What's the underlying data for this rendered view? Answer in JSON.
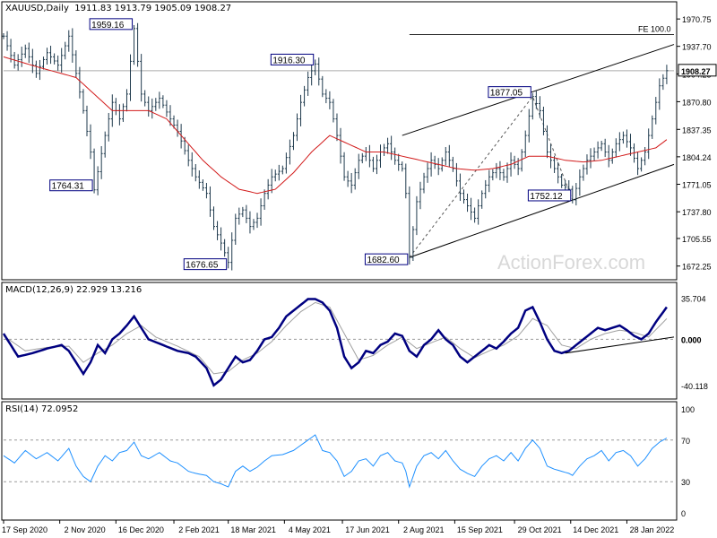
{
  "header": {
    "symbol": "XAUUSD,Daily",
    "ohlc": "1911.83 1913.79 1905.09 1908.27",
    "macd": "MACD(12,26,9) 22.929 13.216",
    "rsi": "RSI(14) 72.0952"
  },
  "watermark": "ActionForex.com",
  "colors": {
    "price": "#1f3a4d",
    "ma": "#d21a1a",
    "macd": "#000080",
    "signal": "#a0a0a0",
    "rsi": "#1e90ff",
    "annotation_border": "#000080",
    "channel": "#000000"
  },
  "chart_data": [
    {
      "type": "ohlc",
      "panel": "price",
      "ylim": [
        1660,
        1985
      ],
      "y_ticks": [
        "1970.75",
        "1937.70",
        "1904.25",
        "1870.80",
        "1837.35",
        "1804.24",
        "1771.05",
        "1737.80",
        "1705.55",
        "1672.25"
      ],
      "current_price_label": "1908.27",
      "x_ticks": [
        "17 Sep 2020",
        "2 Nov 2020",
        "16 Dec 2020",
        "2 Feb 2021",
        "18 Mar 2021",
        "4 May 2021",
        "17 Jun 2021",
        "2 Aug 2021",
        "15 Sep 2021",
        "29 Oct 2021",
        "14 Dec 2021",
        "28 Jan 2022"
      ],
      "price_path": [
        [
          0,
          1950
        ],
        [
          3,
          1915
        ],
        [
          6,
          1935
        ],
        [
          9,
          1905
        ],
        [
          12,
          1930
        ],
        [
          15,
          1915
        ],
        [
          18,
          1950
        ],
        [
          20,
          1905
        ],
        [
          22,
          1860
        ],
        [
          24,
          1810
        ],
        [
          25,
          1764.31
        ],
        [
          28,
          1830
        ],
        [
          30,
          1870
        ],
        [
          32,
          1850
        ],
        [
          34,
          1880
        ],
        [
          36,
          1959.16
        ],
        [
          38,
          1880
        ],
        [
          40,
          1860
        ],
        [
          43,
          1875
        ],
        [
          46,
          1850
        ],
        [
          48,
          1835
        ],
        [
          51,
          1800
        ],
        [
          53,
          1780
        ],
        [
          56,
          1760
        ],
        [
          58,
          1720
        ],
        [
          60,
          1700
        ],
        [
          62,
          1676.65
        ],
        [
          64,
          1730
        ],
        [
          66,
          1740
        ],
        [
          68,
          1720
        ],
        [
          70,
          1730
        ],
        [
          72,
          1760
        ],
        [
          74,
          1780
        ],
        [
          77,
          1790
        ],
        [
          80,
          1830
        ],
        [
          82,
          1870
        ],
        [
          84,
          1900
        ],
        [
          86,
          1916.3
        ],
        [
          88,
          1880
        ],
        [
          90,
          1870
        ],
        [
          92,
          1830
        ],
        [
          94,
          1780
        ],
        [
          96,
          1770
        ],
        [
          98,
          1800
        ],
        [
          100,
          1810
        ],
        [
          102,
          1790
        ],
        [
          104,
          1810
        ],
        [
          106,
          1820
        ],
        [
          108,
          1800
        ],
        [
          110,
          1790
        ],
        [
          111,
          1760
        ],
        [
          112,
          1682.6
        ],
        [
          114,
          1750
        ],
        [
          116,
          1780
        ],
        [
          118,
          1800
        ],
        [
          120,
          1790
        ],
        [
          122,
          1810
        ],
        [
          124,
          1790
        ],
        [
          126,
          1760
        ],
        [
          128,
          1745
        ],
        [
          130,
          1730
        ],
        [
          132,
          1760
        ],
        [
          134,
          1780
        ],
        [
          136,
          1790
        ],
        [
          138,
          1780
        ],
        [
          140,
          1800
        ],
        [
          142,
          1790
        ],
        [
          144,
          1830
        ],
        [
          146,
          1877.05
        ],
        [
          148,
          1860
        ],
        [
          150,
          1810
        ],
        [
          152,
          1790
        ],
        [
          154,
          1770
        ],
        [
          156,
          1765
        ],
        [
          157,
          1752.12
        ],
        [
          159,
          1780
        ],
        [
          161,
          1800
        ],
        [
          163,
          1810
        ],
        [
          165,
          1820
        ],
        [
          167,
          1800
        ],
        [
          169,
          1820
        ],
        [
          171,
          1830
        ],
        [
          173,
          1815
        ],
        [
          175,
          1790
        ],
        [
          177,
          1810
        ],
        [
          179,
          1850
        ],
        [
          181,
          1890
        ],
        [
          183,
          1908.27
        ]
      ],
      "ma_path": [
        [
          0,
          1925
        ],
        [
          10,
          1912
        ],
        [
          20,
          1900
        ],
        [
          25,
          1880
        ],
        [
          30,
          1860
        ],
        [
          35,
          1860
        ],
        [
          40,
          1860
        ],
        [
          45,
          1850
        ],
        [
          50,
          1825
        ],
        [
          55,
          1800
        ],
        [
          60,
          1780
        ],
        [
          65,
          1765
        ],
        [
          70,
          1760
        ],
        [
          75,
          1765
        ],
        [
          80,
          1785
        ],
        [
          85,
          1810
        ],
        [
          90,
          1830
        ],
        [
          95,
          1820
        ],
        [
          100,
          1810
        ],
        [
          105,
          1810
        ],
        [
          110,
          1805
        ],
        [
          115,
          1800
        ],
        [
          120,
          1795
        ],
        [
          125,
          1790
        ],
        [
          130,
          1788
        ],
        [
          135,
          1790
        ],
        [
          140,
          1795
        ],
        [
          145,
          1805
        ],
        [
          150,
          1805
        ],
        [
          155,
          1800
        ],
        [
          160,
          1798
        ],
        [
          165,
          1800
        ],
        [
          170,
          1805
        ],
        [
          175,
          1810
        ],
        [
          180,
          1815
        ],
        [
          183,
          1825
        ]
      ],
      "annotations": [
        {
          "label": "1959.16",
          "x": 36,
          "y": 1959.16,
          "side": "left"
        },
        {
          "label": "1916.30",
          "x": 86,
          "y": 1916.3,
          "side": "left"
        },
        {
          "label": "1764.31",
          "x": 25,
          "y": 1764.31,
          "side": "left"
        },
        {
          "label": "1676.65",
          "x": 62,
          "y": 1676.65,
          "side": "left"
        },
        {
          "label": "1682.60",
          "x": 112,
          "y": 1682.6,
          "side": "left"
        },
        {
          "label": "1877.05",
          "x": 146,
          "y": 1877.05,
          "side": "left"
        },
        {
          "label": "1752.12",
          "x": 157,
          "y": 1752.12,
          "side": "left"
        }
      ],
      "fe_label": "FE 100.0",
      "fe_level": 1952
    },
    {
      "type": "line",
      "panel": "macd",
      "ylim": [
        -48,
        44
      ],
      "y_ticks": [
        "35.704",
        "0.00",
        "-40.118"
      ],
      "zero_label": "0.000",
      "macd_path": [
        [
          0,
          5
        ],
        [
          2,
          -5
        ],
        [
          4,
          -15
        ],
        [
          8,
          -12
        ],
        [
          12,
          -8
        ],
        [
          16,
          -5
        ],
        [
          18,
          -10
        ],
        [
          20,
          -20
        ],
        [
          22,
          -30
        ],
        [
          24,
          -20
        ],
        [
          26,
          -5
        ],
        [
          28,
          -12
        ],
        [
          30,
          0
        ],
        [
          32,
          5
        ],
        [
          34,
          12
        ],
        [
          36,
          20
        ],
        [
          38,
          10
        ],
        [
          40,
          0
        ],
        [
          44,
          -5
        ],
        [
          48,
          -10
        ],
        [
          51,
          -12
        ],
        [
          53,
          -15
        ],
        [
          56,
          -25
        ],
        [
          58,
          -40
        ],
        [
          60,
          -35
        ],
        [
          62,
          -25
        ],
        [
          64,
          -15
        ],
        [
          66,
          -20
        ],
        [
          68,
          -18
        ],
        [
          70,
          -10
        ],
        [
          72,
          0
        ],
        [
          74,
          2
        ],
        [
          76,
          10
        ],
        [
          78,
          20
        ],
        [
          80,
          25
        ],
        [
          82,
          30
        ],
        [
          84,
          35
        ],
        [
          86,
          35
        ],
        [
          88,
          32
        ],
        [
          90,
          25
        ],
        [
          92,
          10
        ],
        [
          94,
          -15
        ],
        [
          96,
          -25
        ],
        [
          98,
          -20
        ],
        [
          100,
          -10
        ],
        [
          102,
          -12
        ],
        [
          104,
          -5
        ],
        [
          106,
          -2
        ],
        [
          108,
          5
        ],
        [
          110,
          3
        ],
        [
          112,
          -10
        ],
        [
          114,
          -15
        ],
        [
          116,
          -5
        ],
        [
          118,
          0
        ],
        [
          120,
          8
        ],
        [
          122,
          0
        ],
        [
          124,
          -5
        ],
        [
          126,
          -15
        ],
        [
          128,
          -20
        ],
        [
          130,
          -15
        ],
        [
          132,
          -10
        ],
        [
          134,
          -5
        ],
        [
          136,
          -8
        ],
        [
          138,
          -2
        ],
        [
          140,
          5
        ],
        [
          142,
          10
        ],
        [
          144,
          25
        ],
        [
          146,
          28
        ],
        [
          148,
          15
        ],
        [
          150,
          0
        ],
        [
          152,
          -10
        ],
        [
          154,
          -12
        ],
        [
          156,
          -10
        ],
        [
          158,
          -5
        ],
        [
          160,
          0
        ],
        [
          162,
          5
        ],
        [
          164,
          10
        ],
        [
          166,
          8
        ],
        [
          168,
          10
        ],
        [
          170,
          12
        ],
        [
          172,
          8
        ],
        [
          174,
          3
        ],
        [
          176,
          0
        ],
        [
          178,
          5
        ],
        [
          180,
          15
        ],
        [
          183,
          28
        ]
      ],
      "signal_path": [
        [
          0,
          3
        ],
        [
          6,
          -10
        ],
        [
          12,
          -7
        ],
        [
          18,
          -6
        ],
        [
          22,
          -20
        ],
        [
          26,
          -12
        ],
        [
          30,
          -5
        ],
        [
          34,
          5
        ],
        [
          38,
          12
        ],
        [
          42,
          2
        ],
        [
          48,
          -6
        ],
        [
          54,
          -15
        ],
        [
          58,
          -30
        ],
        [
          62,
          -28
        ],
        [
          66,
          -18
        ],
        [
          70,
          -12
        ],
        [
          74,
          -2
        ],
        [
          78,
          12
        ],
        [
          82,
          24
        ],
        [
          86,
          32
        ],
        [
          90,
          28
        ],
        [
          94,
          5
        ],
        [
          98,
          -18
        ],
        [
          102,
          -14
        ],
        [
          106,
          -5
        ],
        [
          110,
          2
        ],
        [
          114,
          -8
        ],
        [
          118,
          -3
        ],
        [
          122,
          2
        ],
        [
          126,
          -8
        ],
        [
          130,
          -16
        ],
        [
          134,
          -10
        ],
        [
          138,
          -5
        ],
        [
          142,
          3
        ],
        [
          146,
          18
        ],
        [
          150,
          12
        ],
        [
          154,
          -5
        ],
        [
          158,
          -8
        ],
        [
          162,
          0
        ],
        [
          166,
          5
        ],
        [
          170,
          8
        ],
        [
          174,
          6
        ],
        [
          178,
          2
        ],
        [
          183,
          18
        ]
      ],
      "trendline": [
        [
          155,
          -12
        ],
        [
          185,
          2
        ]
      ]
    },
    {
      "type": "line",
      "panel": "rsi",
      "ylim": [
        0,
        100
      ],
      "y_ticks": [
        "100",
        "70",
        "30",
        "0"
      ],
      "levels": [
        70,
        30
      ],
      "rsi_path": [
        [
          0,
          55
        ],
        [
          3,
          48
        ],
        [
          6,
          60
        ],
        [
          9,
          52
        ],
        [
          12,
          58
        ],
        [
          15,
          50
        ],
        [
          18,
          62
        ],
        [
          20,
          45
        ],
        [
          22,
          35
        ],
        [
          24,
          30
        ],
        [
          26,
          45
        ],
        [
          28,
          55
        ],
        [
          30,
          50
        ],
        [
          32,
          58
        ],
        [
          34,
          60
        ],
        [
          36,
          68
        ],
        [
          38,
          55
        ],
        [
          40,
          52
        ],
        [
          43,
          58
        ],
        [
          46,
          50
        ],
        [
          48,
          48
        ],
        [
          51,
          40
        ],
        [
          53,
          38
        ],
        [
          56,
          36
        ],
        [
          58,
          30
        ],
        [
          60,
          28
        ],
        [
          62,
          25
        ],
        [
          64,
          40
        ],
        [
          66,
          45
        ],
        [
          68,
          40
        ],
        [
          70,
          44
        ],
        [
          72,
          50
        ],
        [
          74,
          55
        ],
        [
          77,
          56
        ],
        [
          80,
          60
        ],
        [
          82,
          65
        ],
        [
          84,
          70
        ],
        [
          86,
          75
        ],
        [
          88,
          60
        ],
        [
          90,
          58
        ],
        [
          92,
          50
        ],
        [
          94,
          35
        ],
        [
          96,
          40
        ],
        [
          98,
          50
        ],
        [
          100,
          52
        ],
        [
          102,
          45
        ],
        [
          104,
          55
        ],
        [
          106,
          58
        ],
        [
          108,
          50
        ],
        [
          110,
          48
        ],
        [
          111,
          40
        ],
        [
          112,
          25
        ],
        [
          114,
          45
        ],
        [
          116,
          55
        ],
        [
          118,
          58
        ],
        [
          120,
          52
        ],
        [
          122,
          60
        ],
        [
          124,
          50
        ],
        [
          126,
          42
        ],
        [
          128,
          38
        ],
        [
          130,
          35
        ],
        [
          132,
          45
        ],
        [
          134,
          52
        ],
        [
          136,
          55
        ],
        [
          138,
          50
        ],
        [
          140,
          58
        ],
        [
          142,
          50
        ],
        [
          144,
          62
        ],
        [
          146,
          70
        ],
        [
          148,
          62
        ],
        [
          150,
          45
        ],
        [
          152,
          42
        ],
        [
          154,
          40
        ],
        [
          156,
          38
        ],
        [
          157,
          36
        ],
        [
          159,
          45
        ],
        [
          161,
          52
        ],
        [
          163,
          55
        ],
        [
          165,
          60
        ],
        [
          167,
          50
        ],
        [
          169,
          58
        ],
        [
          171,
          60
        ],
        [
          173,
          55
        ],
        [
          175,
          45
        ],
        [
          177,
          52
        ],
        [
          179,
          62
        ],
        [
          181,
          68
        ],
        [
          183,
          72
        ]
      ]
    }
  ]
}
